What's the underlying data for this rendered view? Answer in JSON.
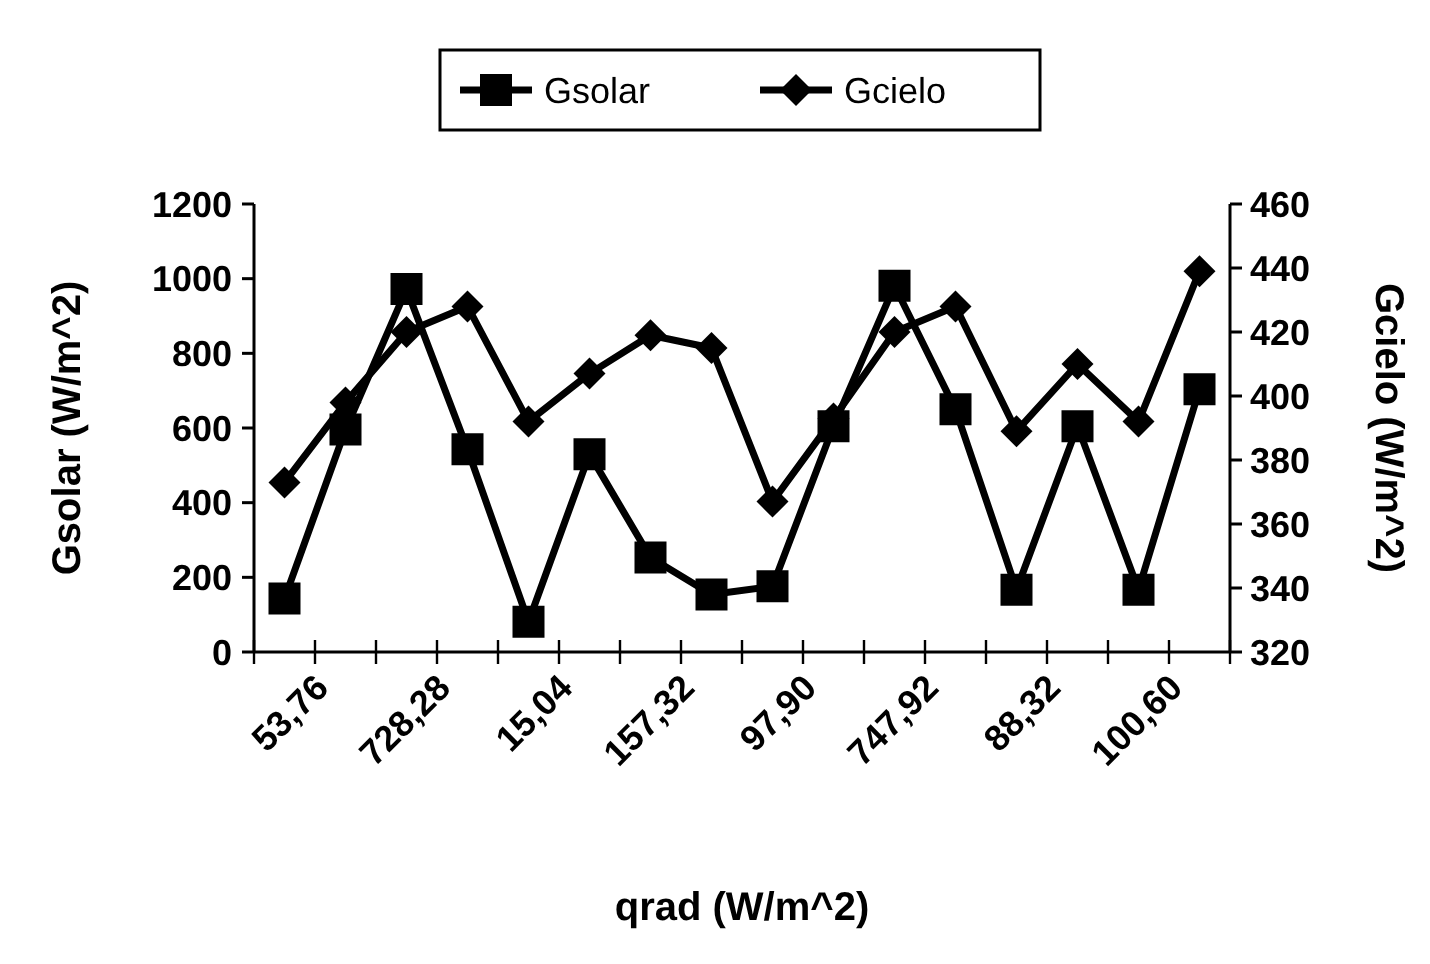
{
  "chart_data": {
    "type": "line",
    "xlabel": "qrad (W/m^2)",
    "ylabel": "Gsolar (W/m^2)",
    "y2label": "Gcielo (W/m^2)",
    "categories": [
      "53,76",
      null,
      "728,28",
      null,
      "15,04",
      null,
      "157,32",
      null,
      "97,90",
      null,
      "747,92",
      null,
      "88,32",
      null,
      "100,60",
      null
    ],
    "series": [
      {
        "name": "Gsolar",
        "color": "#000000",
        "marker": "square",
        "values": [
          143,
          596,
          972,
          543,
          81,
          530,
          253,
          154,
          176,
          605,
          981,
          650,
          167,
          605,
          167,
          704
        ]
      },
      {
        "name": "Gcielo",
        "color": "#000000",
        "marker": "diamond",
        "axis": "y2",
        "values": [
          373,
          398,
          420,
          428,
          392,
          407,
          419,
          415,
          367,
          393,
          420,
          428,
          389,
          410,
          392,
          439
        ]
      }
    ],
    "ylim": [
      0,
      1200
    ],
    "yticks": [
      0,
      200,
      400,
      600,
      800,
      1000,
      1200
    ],
    "y2lim": [
      320,
      460
    ],
    "y2ticks": [
      320,
      340,
      360,
      380,
      400,
      420,
      440,
      460
    ],
    "legend": "top",
    "grid": false,
    "line_style": "solid"
  }
}
